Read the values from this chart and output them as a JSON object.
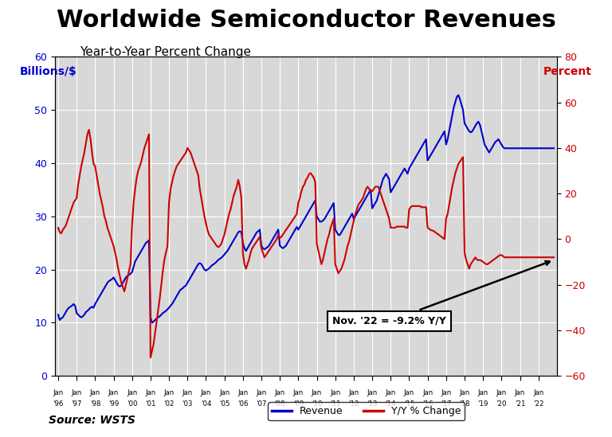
{
  "title": "Worldwide Semiconductor Revenues",
  "subtitle": "Year-to-Year Percent Change",
  "left_label": "Billions/$",
  "right_label": "Percent",
  "source": "Source: WSTS",
  "annotation": "Nov. '22 = -9.2% Y/Y",
  "left_ylim": [
    0,
    60
  ],
  "right_ylim": [
    -60,
    80
  ],
  "left_yticks": [
    0,
    10,
    20,
    30,
    40,
    50,
    60
  ],
  "right_yticks": [
    -60,
    -40,
    -20,
    0,
    20,
    40,
    60,
    80
  ],
  "title_fontsize": 22,
  "subtitle_fontsize": 11,
  "revenue_color": "#0000CC",
  "yoy_color": "#CC0000",
  "background_color": "#D8D8D8",
  "revenue_data": [
    11.5,
    10.5,
    10.8,
    11.0,
    11.5,
    12.0,
    12.5,
    12.8,
    13.0,
    13.2,
    13.5,
    13.2,
    11.8,
    11.5,
    11.2,
    11.0,
    11.2,
    11.5,
    12.0,
    12.2,
    12.5,
    12.8,
    13.0,
    12.8,
    13.5,
    14.0,
    14.5,
    15.0,
    15.5,
    16.0,
    16.5,
    17.0,
    17.5,
    17.8,
    18.0,
    18.2,
    18.5,
    18.0,
    17.5,
    17.0,
    16.8,
    17.0,
    17.5,
    18.0,
    18.5,
    18.8,
    19.0,
    19.2,
    19.5,
    20.5,
    21.5,
    22.0,
    22.5,
    23.0,
    23.5,
    24.0,
    24.5,
    25.0,
    25.2,
    25.5,
    11.0,
    10.0,
    10.2,
    10.5,
    10.8,
    11.0,
    11.2,
    11.5,
    11.8,
    12.0,
    12.2,
    12.5,
    12.8,
    13.2,
    13.5,
    14.0,
    14.5,
    15.0,
    15.5,
    16.0,
    16.3,
    16.5,
    16.8,
    17.0,
    17.5,
    18.0,
    18.5,
    19.0,
    19.5,
    20.0,
    20.5,
    21.0,
    21.2,
    21.0,
    20.5,
    20.0,
    19.8,
    20.0,
    20.2,
    20.5,
    20.8,
    21.0,
    21.2,
    21.5,
    21.8,
    22.0,
    22.2,
    22.5,
    22.8,
    23.2,
    23.5,
    24.0,
    24.5,
    25.0,
    25.5,
    26.0,
    26.5,
    27.0,
    27.2,
    27.0,
    25.0,
    24.0,
    23.5,
    24.0,
    24.5,
    25.0,
    25.5,
    26.0,
    26.5,
    27.0,
    27.2,
    27.5,
    24.5,
    24.0,
    23.8,
    24.0,
    24.2,
    24.5,
    25.0,
    25.5,
    26.0,
    26.5,
    27.0,
    27.5,
    24.5,
    24.2,
    24.0,
    24.2,
    24.5,
    25.0,
    25.5,
    26.0,
    26.5,
    27.0,
    27.5,
    28.0,
    27.5,
    28.0,
    28.5,
    29.0,
    29.5,
    30.0,
    30.5,
    31.0,
    31.5,
    32.0,
    32.5,
    33.0,
    30.0,
    29.5,
    29.0,
    29.0,
    29.2,
    29.5,
    30.0,
    30.5,
    31.0,
    31.5,
    32.0,
    32.5,
    27.5,
    27.0,
    26.5,
    26.5,
    27.0,
    27.5,
    28.0,
    28.5,
    29.0,
    29.5,
    30.0,
    30.5,
    29.5,
    30.0,
    30.5,
    31.0,
    31.5,
    32.0,
    32.5,
    33.0,
    33.5,
    34.0,
    34.5,
    35.0,
    31.5,
    32.0,
    32.5,
    33.0,
    34.0,
    35.0,
    36.0,
    37.0,
    37.5,
    38.0,
    37.5,
    37.0,
    34.5,
    35.0,
    35.5,
    36.0,
    36.5,
    37.0,
    37.5,
    38.0,
    38.5,
    39.0,
    38.5,
    38.0,
    39.0,
    39.5,
    40.0,
    40.5,
    41.0,
    41.5,
    42.0,
    42.5,
    43.0,
    43.5,
    44.0,
    44.5,
    40.5,
    41.0,
    41.5,
    42.0,
    42.5,
    43.0,
    43.5,
    44.0,
    44.5,
    45.0,
    45.5,
    46.0,
    43.5,
    44.5,
    46.0,
    47.5,
    49.0,
    50.5,
    51.5,
    52.5,
    52.8,
    52.0,
    51.0,
    50.0,
    47.5,
    47.0,
    46.5,
    46.0,
    45.8,
    46.0,
    46.5,
    47.0,
    47.5,
    47.8,
    47.2,
    46.0,
    44.8,
    43.5,
    43.0,
    42.5,
    42.0,
    42.5,
    43.0,
    43.5,
    44.0,
    44.2,
    44.5,
    44.0,
    43.5,
    43.0,
    42.8
  ],
  "yoy_data": [
    5.0,
    3.0,
    2.5,
    4.0,
    5.0,
    6.0,
    8.0,
    10.0,
    12.0,
    14.0,
    16.0,
    17.0,
    18.0,
    24.0,
    28.0,
    32.0,
    35.0,
    38.0,
    42.0,
    46.0,
    48.0,
    44.0,
    38.0,
    33.0,
    32.0,
    28.0,
    24.0,
    20.0,
    17.0,
    14.0,
    10.0,
    8.0,
    5.0,
    3.0,
    1.0,
    -1.0,
    -3.0,
    -6.0,
    -9.0,
    -13.0,
    -16.0,
    -19.0,
    -21.0,
    -23.0,
    -20.0,
    -17.0,
    -14.0,
    -11.0,
    6.0,
    16.0,
    22.0,
    27.0,
    30.0,
    32.0,
    34.0,
    37.0,
    40.0,
    42.0,
    44.0,
    46.0,
    -52.0,
    -49.0,
    -46.0,
    -41.0,
    -36.0,
    -31.0,
    -26.0,
    -20.0,
    -14.0,
    -9.0,
    -6.0,
    -3.0,
    16.0,
    22.0,
    25.0,
    28.0,
    30.0,
    32.0,
    33.0,
    34.0,
    35.0,
    36.0,
    37.0,
    38.0,
    40.0,
    39.0,
    38.0,
    36.0,
    34.0,
    32.0,
    30.0,
    28.0,
    22.0,
    18.0,
    14.0,
    10.0,
    7.0,
    4.0,
    2.0,
    1.0,
    0.0,
    -1.0,
    -2.0,
    -3.0,
    -3.5,
    -3.0,
    -2.0,
    0.0,
    2.0,
    5.0,
    8.0,
    11.0,
    13.0,
    16.0,
    19.0,
    21.0,
    23.0,
    26.0,
    23.0,
    18.0,
    -6.0,
    -11.0,
    -13.0,
    -11.0,
    -9.0,
    -6.0,
    -4.0,
    -3.0,
    -2.0,
    -1.0,
    0.0,
    1.0,
    -4.0,
    -6.0,
    -8.0,
    -7.0,
    -6.0,
    -5.0,
    -4.0,
    -3.0,
    -2.0,
    -1.0,
    0.0,
    2.0,
    0.5,
    1.0,
    2.0,
    3.0,
    4.0,
    5.0,
    6.0,
    7.0,
    8.0,
    9.0,
    10.0,
    11.0,
    16.0,
    18.0,
    21.0,
    23.0,
    24.0,
    26.0,
    27.0,
    28.5,
    29.0,
    28.0,
    27.0,
    25.0,
    -2.0,
    -5.0,
    -8.0,
    -11.0,
    -9.0,
    -6.0,
    -3.0,
    0.0,
    2.0,
    5.0,
    7.0,
    9.0,
    -11.0,
    -13.0,
    -15.0,
    -14.0,
    -13.0,
    -11.0,
    -9.0,
    -6.0,
    -3.0,
    -1.0,
    2.0,
    5.0,
    8.0,
    11.0,
    13.0,
    15.0,
    16.0,
    17.0,
    18.0,
    20.0,
    22.0,
    23.0,
    22.0,
    21.0,
    21.0,
    22.0,
    23.0,
    23.0,
    23.0,
    21.0,
    19.0,
    17.0,
    15.0,
    13.0,
    11.0,
    9.0,
    5.0,
    5.0,
    5.0,
    5.0,
    5.5,
    5.5,
    5.5,
    5.5,
    5.5,
    5.5,
    5.0,
    5.0,
    13.0,
    14.0,
    14.5,
    14.5,
    14.5,
    14.5,
    14.5,
    14.5,
    14.0,
    14.0,
    14.0,
    14.0,
    5.0,
    4.5,
    4.0,
    3.8,
    3.5,
    3.0,
    2.5,
    2.0,
    1.5,
    1.0,
    0.5,
    0.0,
    9.0,
    11.0,
    15.0,
    19.0,
    23.0,
    26.0,
    29.0,
    31.0,
    33.0,
    34.0,
    35.0,
    36.0,
    -6.0,
    -9.0,
    -11.0,
    -13.0,
    -11.0,
    -10.0,
    -9.0,
    -8.0,
    -9.0,
    -9.2,
    -9.2,
    -9.5,
    -10.0,
    -10.5,
    -11.0,
    -11.0,
    -10.5,
    -10.0,
    -9.5,
    -9.0,
    -8.5,
    -8.0,
    -7.5,
    -7.0,
    -7.0,
    -7.5,
    -8.0
  ],
  "x_tick_years": [
    "'96",
    "'97",
    "'98",
    "'99",
    "'00",
    "'01",
    "'02",
    "'03",
    "'04",
    "'05",
    "'06",
    "'07",
    "'08",
    "'09",
    "'10",
    "'11",
    "'12",
    "'13",
    "'14",
    "'15",
    "'16",
    "'17",
    "'18",
    "'19",
    "'20",
    "'21",
    "'22"
  ]
}
